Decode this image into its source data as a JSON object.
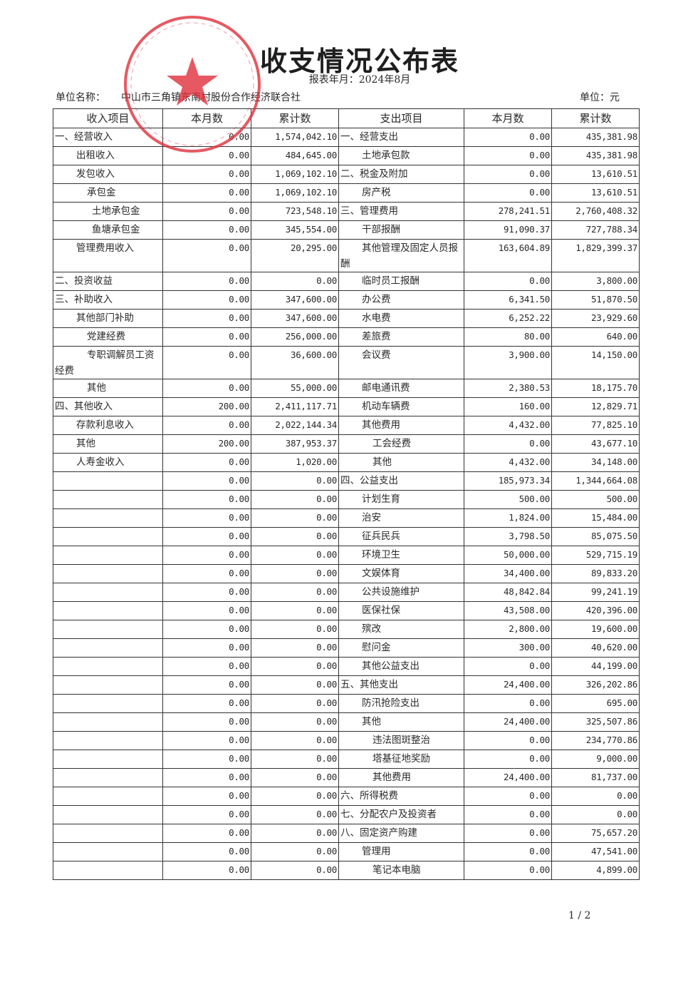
{
  "title": "收支情况公布表",
  "period": "报表年月：2024年8月",
  "unit_label": "单位名称：",
  "unit_value": "中山市三角镇东南村股份合作经济联合社",
  "currency_unit": "单位：元",
  "page_number": "1 / 2",
  "stamp": {
    "text": "中山市三角镇东南村股份合作经济联合社",
    "color": "#e0303c"
  },
  "columns": [
    "收入项目",
    "本月数",
    "累计数",
    "支出项目",
    "本月数",
    "累计数"
  ],
  "rows": [
    {
      "in_item": "一、经营收入",
      "in_level": 0,
      "in_month": "0.00",
      "in_total": "1,574,042.10",
      "out_item": "一、经营支出",
      "out_level": 0,
      "out_month": "0.00",
      "out_total": "435,381.98"
    },
    {
      "in_item": "出租收入",
      "in_level": 1,
      "in_month": "0.00",
      "in_total": "484,645.00",
      "out_item": "土地承包款",
      "out_level": 1,
      "out_month": "0.00",
      "out_total": "435,381.98"
    },
    {
      "in_item": "发包收入",
      "in_level": 1,
      "in_month": "0.00",
      "in_total": "1,069,102.10",
      "out_item": "二、税金及附加",
      "out_level": 0,
      "out_month": "0.00",
      "out_total": "13,610.51"
    },
    {
      "in_item": "承包金",
      "in_level": 2,
      "in_month": "0.00",
      "in_total": "1,069,102.10",
      "out_item": "房产税",
      "out_level": 1,
      "out_month": "0.00",
      "out_total": "13,610.51"
    },
    {
      "in_item": "土地承包金",
      "in_level": 3,
      "in_month": "0.00",
      "in_total": "723,548.10",
      "out_item": "三、管理费用",
      "out_level": 0,
      "out_month": "278,241.51",
      "out_total": "2,760,408.32"
    },
    {
      "in_item": "鱼塘承包金",
      "in_level": 3,
      "in_month": "0.00",
      "in_total": "345,554.00",
      "out_item": "干部报酬",
      "out_level": 1,
      "out_month": "91,090.37",
      "out_total": "727,788.34"
    },
    {
      "in_item": "管理费用收入",
      "in_level": 1,
      "in_month": "0.00",
      "in_total": "20,295.00",
      "out_item": "其他管理及固定人员报酬",
      "out_level": 1,
      "out_month": "163,604.89",
      "out_total": "1,829,399.37",
      "tall": true
    },
    {
      "in_item": "二、投资收益",
      "in_level": 0,
      "in_month": "0.00",
      "in_total": "0.00",
      "out_item": "临时员工报酬",
      "out_level": 1,
      "out_month": "0.00",
      "out_total": "3,800.00"
    },
    {
      "in_item": "三、补助收入",
      "in_level": 0,
      "in_month": "0.00",
      "in_total": "347,600.00",
      "out_item": "办公费",
      "out_level": 1,
      "out_month": "6,341.50",
      "out_total": "51,870.50"
    },
    {
      "in_item": "其他部门补助",
      "in_level": 1,
      "in_month": "0.00",
      "in_total": "347,600.00",
      "out_item": "水电费",
      "out_level": 1,
      "out_month": "6,252.22",
      "out_total": "23,929.60"
    },
    {
      "in_item": "党建经费",
      "in_level": 2,
      "in_month": "0.00",
      "in_total": "256,000.00",
      "out_item": "差旅费",
      "out_level": 1,
      "out_month": "80.00",
      "out_total": "640.00"
    },
    {
      "in_item": "专职调解员工资经费",
      "in_level": 2,
      "in_month": "0.00",
      "in_total": "36,600.00",
      "out_item": "会议费",
      "out_level": 1,
      "out_month": "3,900.00",
      "out_total": "14,150.00",
      "tall": true
    },
    {
      "in_item": "其他",
      "in_level": 2,
      "in_month": "0.00",
      "in_total": "55,000.00",
      "out_item": "邮电通讯费",
      "out_level": 1,
      "out_month": "2,380.53",
      "out_total": "18,175.70"
    },
    {
      "in_item": "四、其他收入",
      "in_level": 0,
      "in_month": "200.00",
      "in_total": "2,411,117.71",
      "out_item": "机动车辆费",
      "out_level": 1,
      "out_month": "160.00",
      "out_total": "12,829.71"
    },
    {
      "in_item": "存款利息收入",
      "in_level": 1,
      "in_month": "0.00",
      "in_total": "2,022,144.34",
      "out_item": "其他费用",
      "out_level": 1,
      "out_month": "4,432.00",
      "out_total": "77,825.10"
    },
    {
      "in_item": "其他",
      "in_level": 1,
      "in_month": "200.00",
      "in_total": "387,953.37",
      "out_item": "工会经费",
      "out_level": 2,
      "out_month": "0.00",
      "out_total": "43,677.10"
    },
    {
      "in_item": "人寿金收入",
      "in_level": 1,
      "in_month": "0.00",
      "in_total": "1,020.00",
      "out_item": "其他",
      "out_level": 2,
      "out_month": "4,432.00",
      "out_total": "34,148.00"
    },
    {
      "in_item": "",
      "in_level": 0,
      "in_month": "0.00",
      "in_total": "0.00",
      "out_item": "四、公益支出",
      "out_level": 0,
      "out_month": "185,973.34",
      "out_total": "1,344,664.08"
    },
    {
      "in_item": "",
      "in_level": 0,
      "in_month": "0.00",
      "in_total": "0.00",
      "out_item": "计划生育",
      "out_level": 1,
      "out_month": "500.00",
      "out_total": "500.00"
    },
    {
      "in_item": "",
      "in_level": 0,
      "in_month": "0.00",
      "in_total": "0.00",
      "out_item": "治安",
      "out_level": 1,
      "out_month": "1,824.00",
      "out_total": "15,484.00"
    },
    {
      "in_item": "",
      "in_level": 0,
      "in_month": "0.00",
      "in_total": "0.00",
      "out_item": "征兵民兵",
      "out_level": 1,
      "out_month": "3,798.50",
      "out_total": "85,075.50"
    },
    {
      "in_item": "",
      "in_level": 0,
      "in_month": "0.00",
      "in_total": "0.00",
      "out_item": "环境卫生",
      "out_level": 1,
      "out_month": "50,000.00",
      "out_total": "529,715.19"
    },
    {
      "in_item": "",
      "in_level": 0,
      "in_month": "0.00",
      "in_total": "0.00",
      "out_item": "文娱体育",
      "out_level": 1,
      "out_month": "34,400.00",
      "out_total": "89,833.20"
    },
    {
      "in_item": "",
      "in_level": 0,
      "in_month": "0.00",
      "in_total": "0.00",
      "out_item": "公共设施维护",
      "out_level": 1,
      "out_month": "48,842.84",
      "out_total": "99,241.19"
    },
    {
      "in_item": "",
      "in_level": 0,
      "in_month": "0.00",
      "in_total": "0.00",
      "out_item": "医保社保",
      "out_level": 1,
      "out_month": "43,508.00",
      "out_total": "420,396.00"
    },
    {
      "in_item": "",
      "in_level": 0,
      "in_month": "0.00",
      "in_total": "0.00",
      "out_item": "殡改",
      "out_level": 1,
      "out_month": "2,800.00",
      "out_total": "19,600.00"
    },
    {
      "in_item": "",
      "in_level": 0,
      "in_month": "0.00",
      "in_total": "0.00",
      "out_item": "慰问金",
      "out_level": 1,
      "out_month": "300.00",
      "out_total": "40,620.00"
    },
    {
      "in_item": "",
      "in_level": 0,
      "in_month": "0.00",
      "in_total": "0.00",
      "out_item": "其他公益支出",
      "out_level": 1,
      "out_month": "0.00",
      "out_total": "44,199.00"
    },
    {
      "in_item": "",
      "in_level": 0,
      "in_month": "0.00",
      "in_total": "0.00",
      "out_item": "五、其他支出",
      "out_level": 0,
      "out_month": "24,400.00",
      "out_total": "326,202.86"
    },
    {
      "in_item": "",
      "in_level": 0,
      "in_month": "0.00",
      "in_total": "0.00",
      "out_item": "防汛抢险支出",
      "out_level": 1,
      "out_month": "0.00",
      "out_total": "695.00"
    },
    {
      "in_item": "",
      "in_level": 0,
      "in_month": "0.00",
      "in_total": "0.00",
      "out_item": "其他",
      "out_level": 1,
      "out_month": "24,400.00",
      "out_total": "325,507.86"
    },
    {
      "in_item": "",
      "in_level": 0,
      "in_month": "0.00",
      "in_total": "0.00",
      "out_item": "违法图斑整治",
      "out_level": 2,
      "out_month": "0.00",
      "out_total": "234,770.86"
    },
    {
      "in_item": "",
      "in_level": 0,
      "in_month": "0.00",
      "in_total": "0.00",
      "out_item": "塔基征地奖励",
      "out_level": 2,
      "out_month": "0.00",
      "out_total": "9,000.00"
    },
    {
      "in_item": "",
      "in_level": 0,
      "in_month": "0.00",
      "in_total": "0.00",
      "out_item": "其他费用",
      "out_level": 2,
      "out_month": "24,400.00",
      "out_total": "81,737.00"
    },
    {
      "in_item": "",
      "in_level": 0,
      "in_month": "0.00",
      "in_total": "0.00",
      "out_item": "六、所得税费",
      "out_level": 0,
      "out_month": "0.00",
      "out_total": "0.00"
    },
    {
      "in_item": "",
      "in_level": 0,
      "in_month": "0.00",
      "in_total": "0.00",
      "out_item": "七、分配农户及投资者",
      "out_level": 0,
      "out_month": "0.00",
      "out_total": "0.00"
    },
    {
      "in_item": "",
      "in_level": 0,
      "in_month": "0.00",
      "in_total": "0.00",
      "out_item": "八、固定资产购建",
      "out_level": 0,
      "out_month": "0.00",
      "out_total": "75,657.20"
    },
    {
      "in_item": "",
      "in_level": 0,
      "in_month": "0.00",
      "in_total": "0.00",
      "out_item": "管理用",
      "out_level": 1,
      "out_month": "0.00",
      "out_total": "47,541.00"
    },
    {
      "in_item": "",
      "in_level": 0,
      "in_month": "0.00",
      "in_total": "0.00",
      "out_item": "笔记本电脑",
      "out_level": 2,
      "out_month": "0.00",
      "out_total": "4,899.00"
    }
  ]
}
